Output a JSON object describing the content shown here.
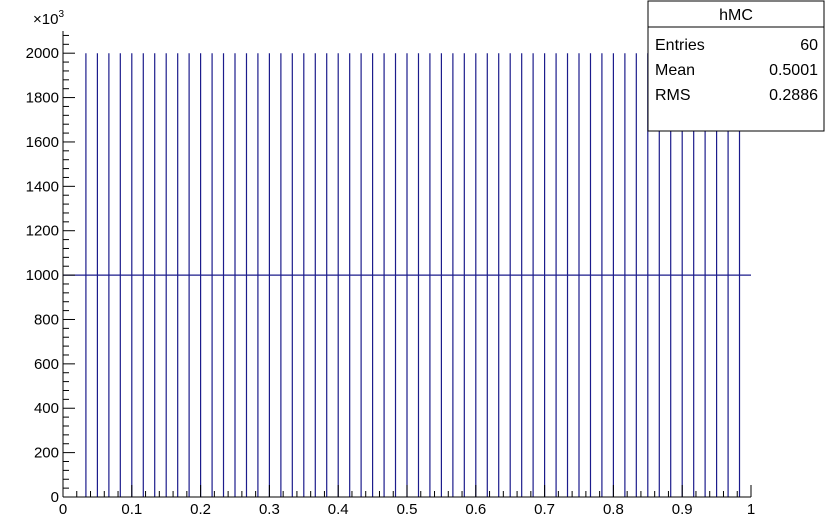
{
  "chart_data": {
    "type": "histogram",
    "title": "",
    "xlabel": "",
    "ylabel": "",
    "xlim": [
      0,
      1
    ],
    "ylim": [
      0,
      2100
    ],
    "y_exponent_label": "×10",
    "y_exponent_power": "3",
    "x_ticks": [
      "0",
      "0.1",
      "0.2",
      "0.3",
      "0.4",
      "0.5",
      "0.6",
      "0.7",
      "0.8",
      "0.9",
      "1"
    ],
    "y_ticks": [
      "0",
      "200",
      "400",
      "600",
      "800",
      "1000",
      "1200",
      "1400",
      "1600",
      "1800",
      "2000"
    ],
    "line_color": "#1c1c8c",
    "n_bins": 60,
    "spike_positions": [
      0.0333,
      0.05,
      0.0667,
      0.0833,
      0.1,
      0.1167,
      0.1333,
      0.15,
      0.1667,
      0.1833,
      0.2,
      0.2167,
      0.2333,
      0.25,
      0.2667,
      0.2833,
      0.3,
      0.3167,
      0.3333,
      0.35,
      0.3667,
      0.3833,
      0.4,
      0.4167,
      0.4333,
      0.45,
      0.4667,
      0.4833,
      0.5,
      0.5167,
      0.5333,
      0.55,
      0.5667,
      0.5833,
      0.6,
      0.6167,
      0.6333,
      0.65,
      0.6667,
      0.6833,
      0.7,
      0.7167,
      0.7333,
      0.75,
      0.7667,
      0.7833,
      0.8,
      0.8167,
      0.8333,
      0.85,
      0.8667,
      0.8833,
      0.9,
      0.9167,
      0.9333,
      0.95,
      0.9667,
      0.9833
    ],
    "spike_value": 2000,
    "baseline_value": 1000,
    "grid": false,
    "legend": "none"
  },
  "stats_box": {
    "title": "hMC",
    "rows": [
      {
        "label": "Entries",
        "value": "60"
      },
      {
        "label": "Mean",
        "value": "0.5001"
      },
      {
        "label": "RMS",
        "value": "0.2886"
      }
    ]
  }
}
